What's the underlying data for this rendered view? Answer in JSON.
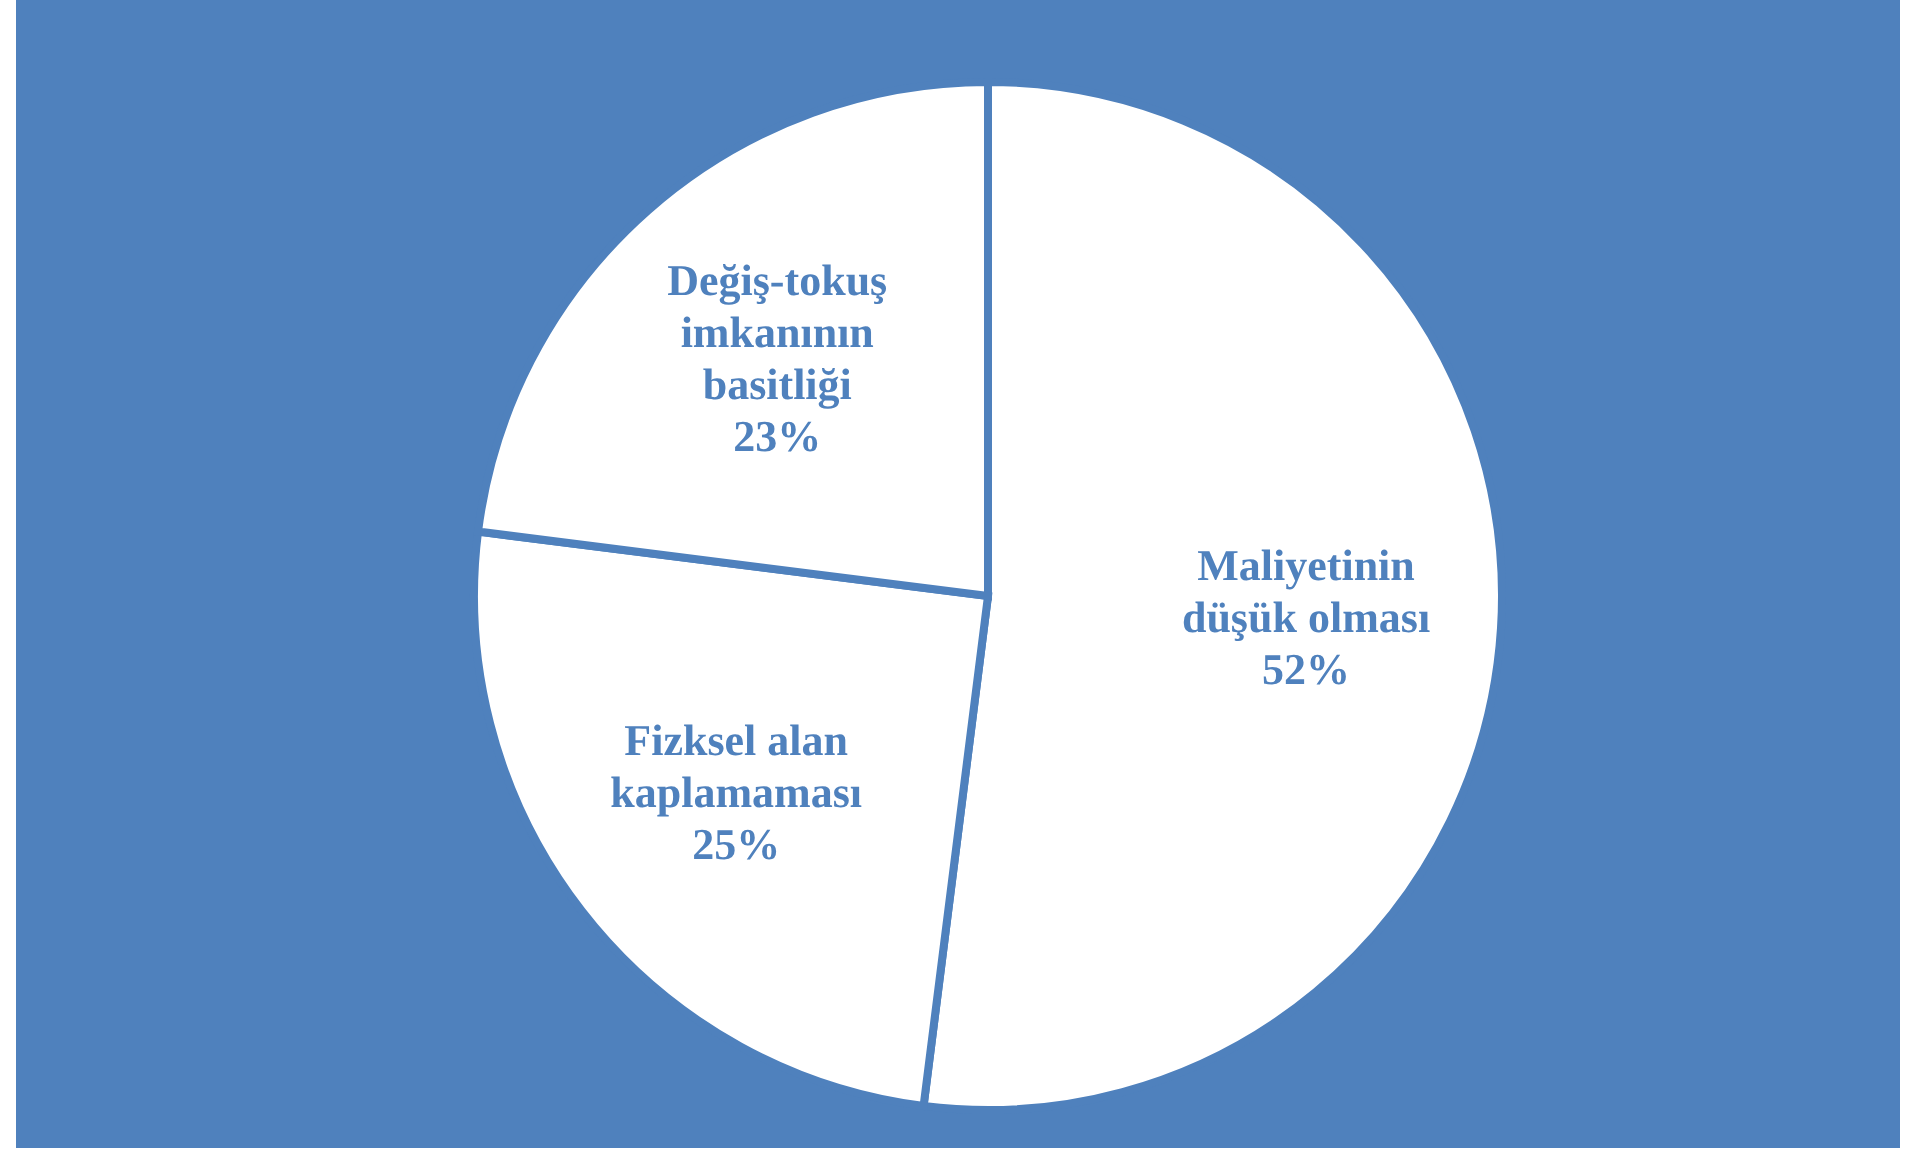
{
  "chart_data": {
    "type": "pie",
    "categories": [
      "Maliyetinin düşük olması",
      "Fizksel alan kaplamaması",
      "Değiş-tokuş imkanının basitliği"
    ],
    "values": [
      52,
      25,
      23
    ],
    "value_labels": [
      "52%",
      "25%",
      "23%"
    ],
    "colors": [
      "#ffffff",
      "#ffffff",
      "#ffffff"
    ]
  }
}
